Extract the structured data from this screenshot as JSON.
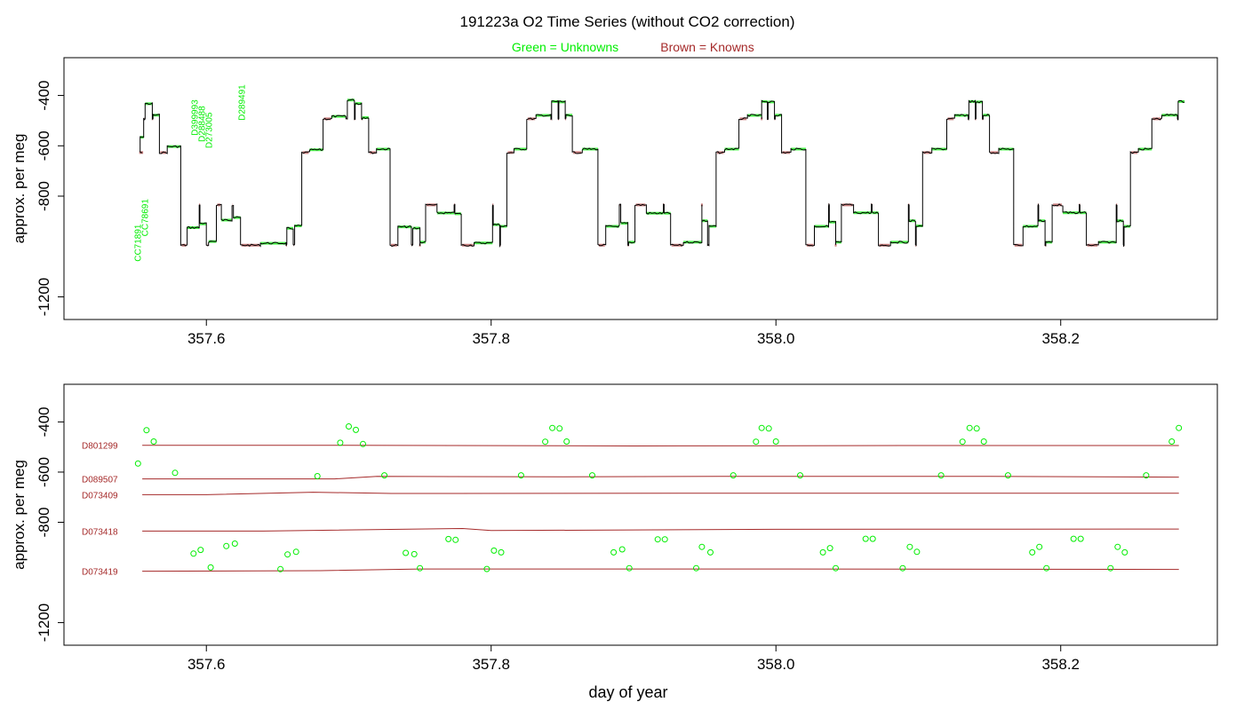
{
  "chart_data": [
    {
      "type": "line",
      "title": "191223a   O2 Time Series (without CO2 correction)",
      "subtitle_unknowns": "Green = Unknowns",
      "subtitle_knowns": "Brown = Knowns",
      "ylabel": "approx. per meg",
      "xlim": [
        357.5,
        358.31
      ],
      "ylim": [
        -1290,
        -250
      ],
      "y_reversed": true,
      "xticks": [
        357.6,
        357.8,
        358.0,
        358.2
      ],
      "xtick_labels": [
        "357.6",
        "357.8",
        "358.0",
        "358.2"
      ],
      "yticks": [
        -400,
        -600,
        -800,
        -1200
      ],
      "ytick_labels": [
        "-400",
        "-600",
        "-800",
        "-1200"
      ],
      "colors": {
        "trace": "#000000",
        "unknowns": "#00ee00",
        "knowns": "#a52a2a"
      },
      "annotations": [
        {
          "text": "CC71891",
          "x": 357.554,
          "y": -1060
        },
        {
          "text": "CC78691",
          "x": 357.559,
          "y": -960
        },
        {
          "text": "D399993",
          "x": 357.594,
          "y": -560
        },
        {
          "text": "D288488",
          "x": 357.599,
          "y": -585
        },
        {
          "text": "D273005",
          "x": 357.604,
          "y": -610
        },
        {
          "text": "D289491",
          "x": 357.627,
          "y": -500
        }
      ]
    },
    {
      "type": "scatter",
      "xlabel": "day of year",
      "ylabel": "approx. per meg",
      "xlim": [
        357.5,
        358.31
      ],
      "ylim": [
        -1290,
        -250
      ],
      "y_reversed": true,
      "xticks": [
        357.6,
        357.8,
        358.0,
        358.2
      ],
      "xtick_labels": [
        "357.6",
        "357.8",
        "358.0",
        "358.2"
      ],
      "yticks": [
        -400,
        -600,
        -800,
        -1200
      ],
      "ytick_labels": [
        "-400",
        "-600",
        "-800",
        "-1200"
      ],
      "colors": {
        "unknowns": "#00ee00",
        "knowns": "#a52a2a"
      },
      "knowns": [
        {
          "name": "D801299",
          "x": [
            357.555,
            357.7,
            357.9,
            358.1,
            358.283
          ],
          "y": [
            -493,
            -493,
            -496,
            -494,
            -494
          ]
        },
        {
          "name": "D089507",
          "x": [
            357.555,
            357.69,
            357.72,
            357.85,
            357.96,
            358.15,
            358.283
          ],
          "y": [
            -627,
            -627,
            -617,
            -619,
            -617,
            -617,
            -620
          ]
        },
        {
          "name": "D073409",
          "x": [
            357.555,
            357.6,
            357.675,
            357.73,
            358.0,
            358.283
          ],
          "y": [
            -690,
            -690,
            -680,
            -685,
            -684,
            -684
          ]
        },
        {
          "name": "D073418",
          "x": [
            357.555,
            357.64,
            357.78,
            357.8,
            358.0,
            358.283
          ],
          "y": [
            -835,
            -835,
            -825,
            -833,
            -828,
            -827
          ]
        },
        {
          "name": "D073419",
          "x": [
            357.555,
            357.68,
            357.75,
            358.0,
            358.283
          ],
          "y": [
            -995,
            -993,
            -986,
            -986,
            -988
          ]
        }
      ],
      "unknowns": {
        "x": [
          357.552,
          357.558,
          357.563,
          357.578,
          357.591,
          357.596,
          357.603,
          357.614,
          357.62,
          357.652,
          357.657,
          357.663,
          357.678,
          357.694,
          357.7,
          357.705,
          357.71,
          357.725,
          357.74,
          357.746,
          357.75,
          357.77,
          357.775,
          357.797,
          357.802,
          357.807,
          357.821,
          357.838,
          357.843,
          357.848,
          357.853,
          357.871,
          357.886,
          357.892,
          357.897,
          357.917,
          357.922,
          357.944,
          357.948,
          357.954,
          357.97,
          357.986,
          357.99,
          357.995,
          358.0,
          358.017,
          358.033,
          358.038,
          358.042,
          358.063,
          358.068,
          358.089,
          358.094,
          358.099,
          358.116,
          358.131,
          358.136,
          358.141,
          358.146,
          358.163,
          358.18,
          358.185,
          358.19,
          358.209,
          358.214,
          358.235,
          358.24,
          358.245,
          358.26,
          358.278,
          358.283
        ],
        "y": [
          -566,
          -433,
          -478,
          -603,
          -925,
          -910,
          -980,
          -895,
          -885,
          -987,
          -928,
          -918,
          -616,
          -483,
          -418,
          -432,
          -488,
          -613,
          -922,
          -927,
          -983,
          -867,
          -870,
          -986,
          -913,
          -920,
          -613,
          -479,
          -424,
          -426,
          -478,
          -613,
          -920,
          -908,
          -983,
          -868,
          -868,
          -983,
          -898,
          -920,
          -613,
          -479,
          -424,
          -426,
          -478,
          -613,
          -920,
          -903,
          -983,
          -866,
          -866,
          -983,
          -898,
          -918,
          -613,
          -479,
          -424,
          -426,
          -478,
          -613,
          -920,
          -898,
          -983,
          -866,
          -866,
          -983,
          -898,
          -920,
          -613,
          -478,
          -424
        ]
      }
    }
  ]
}
